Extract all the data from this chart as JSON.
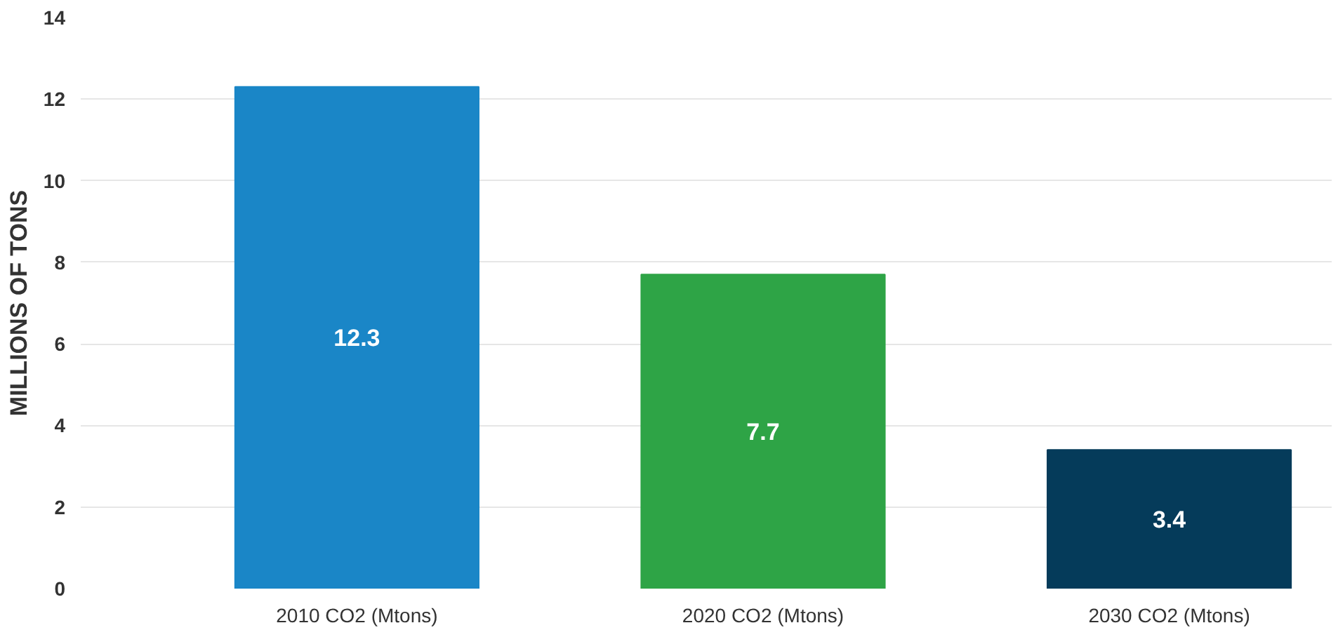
{
  "chart_data": {
    "type": "bar",
    "ylabel": "MILLIONS OF TONS",
    "categories": [
      "2010 CO2 (Mtons)",
      "2020 CO2 (Mtons)",
      "2030 CO2 (Mtons)"
    ],
    "values": [
      12.3,
      7.7,
      3.4
    ],
    "colors": [
      "#1a86c7",
      "#2ea446",
      "#053b5a"
    ],
    "ylim": [
      0,
      14
    ],
    "yticks": [
      0,
      2,
      4,
      6,
      8,
      10,
      12,
      14
    ],
    "grid": "y",
    "data_labels": true
  }
}
